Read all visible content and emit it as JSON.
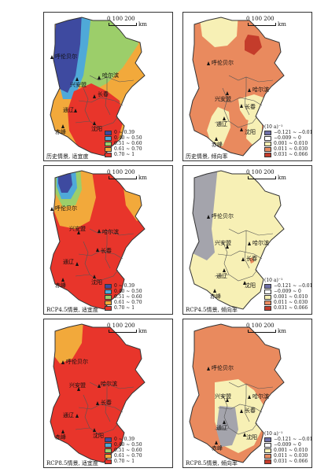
{
  "scale": {
    "numbers": "0   100  200",
    "unit": "km"
  },
  "cities": {
    "hulunbuir": "呼伦贝尔",
    "xinganmeng": "兴安盟",
    "harbin": "哈尔滨",
    "changchun": "长春",
    "tongliao": "通辽",
    "chifeng": "赤峰",
    "shenyang": "沈阳"
  },
  "legends": {
    "suitability": {
      "items": [
        {
          "label": "0 ~ 0.39",
          "color": "#3e4aa0"
        },
        {
          "label": "0.40 ~ 0.50",
          "color": "#4fa9d8"
        },
        {
          "label": "0.51 ~ 0.60",
          "color": "#9cce6a"
        },
        {
          "label": "0.61 ~ 0.70",
          "color": "#f2a93b"
        },
        {
          "label": "0.70 ~ 1",
          "color": "#e8352b"
        }
      ]
    },
    "trend": {
      "unit": "(10 a)⁻¹",
      "items": [
        {
          "label": "−0.121 ~ −0.01",
          "color": "#6e6fa6"
        },
        {
          "label": "−0.009 ~ 0",
          "color": "#ffffff"
        },
        {
          "label": "0.001 ~ 0.010",
          "color": "#f7f0b5"
        },
        {
          "label": "0.011 ~ 0.030",
          "color": "#e88c62"
        },
        {
          "label": "0.031 ~ 0.066",
          "color": "#c43c2b"
        }
      ]
    }
  },
  "panels": [
    {
      "caption": "历史情景, 适宜度",
      "legend": "suitability"
    },
    {
      "caption": "历史情景, 倾向率",
      "legend": "trend"
    },
    {
      "caption": "RCP4.5情景, 适宜度",
      "legend": "suitability"
    },
    {
      "caption": "RCP4.5情景, 倾向率",
      "legend": "trend"
    },
    {
      "caption": "RCP8.5情景, 适宜度",
      "legend": "suitability"
    },
    {
      "caption": "RCP8.5情景, 倾向率",
      "legend": "trend"
    }
  ],
  "colors": {
    "red": "#e8352b",
    "orange": "#f2a93b",
    "green": "#9cce6a",
    "lightblue": "#4fa9d8",
    "darkblue": "#3e4aa0",
    "salmon": "#e98a5e",
    "paleyellow": "#f7f0b5",
    "gray": "#a4a4ac",
    "darkred": "#c43c2b"
  }
}
